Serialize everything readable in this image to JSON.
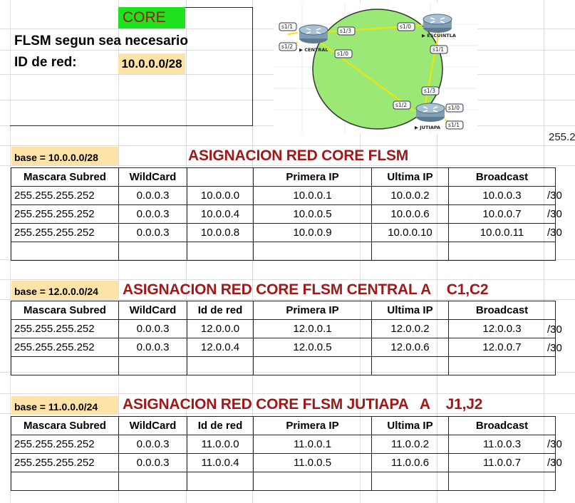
{
  "header": {
    "core_label": "CORE",
    "flsm_text": "FLSM segun sea necesario",
    "net_id_label": "ID de red:",
    "net_id_value": "10.0.0.0/28",
    "edge_clip": "255.2"
  },
  "topology": {
    "routers": [
      {
        "name": "CENTRAL",
        "interfaces": [
          "s1/1",
          "s1/2",
          "s1/3",
          "s1/0"
        ]
      },
      {
        "name": "ESCUINTLA",
        "interfaces": [
          "s1/0",
          "s1/1"
        ]
      },
      {
        "name": "JUTIAPA",
        "interfaces": [
          "s1/3",
          "s1/2",
          "s1/0",
          "s1/1"
        ]
      }
    ],
    "colors": {
      "cloud": "#9be877",
      "link": "#f2e600"
    }
  },
  "sections": [
    {
      "base": "base = 10.0.0.0/28",
      "title": "ASIGNACION RED CORE FLSM",
      "headers": [
        "Mascara Subred",
        "WildCard",
        "",
        "Primera IP",
        "Ultima IP",
        "Broadcast"
      ],
      "rows": [
        [
          "255.255.255.252",
          "0.0.0.3",
          "10.0.0.0",
          "10.0.0.1",
          "10.0.0.2",
          "10.0.0.3"
        ],
        [
          "255.255.255.252",
          "0.0.0.3",
          "10.0.0.4",
          "10.0.0.5",
          "10.0.0.6",
          "10.0.0.7"
        ],
        [
          "255.255.255.252",
          "0.0.0.3",
          "10.0.0.8",
          "10.0.0.9",
          "10.0.0.10",
          "10.0.0.11"
        ]
      ],
      "suffixes": [
        "/30",
        "/30",
        "/30"
      ]
    },
    {
      "base": "base = 12.0.0.0/24",
      "title": "ASIGNACION RED CORE FLSM CENTRAL A    C1,C2",
      "headers": [
        "Mascara Subred",
        "WildCard",
        "Id de red",
        "Primera IP",
        "Ultima IP",
        "Broadcast"
      ],
      "rows": [
        [
          "255.255.255.252",
          "0.0.0.3",
          "12.0.0.0",
          "12.0.0.1",
          "12.0.0.2",
          "12.0.0.3"
        ],
        [
          "255.255.255.252",
          "0.0.0.3",
          "12.0.0.4",
          "12.0.0.5",
          "12.0.0.6",
          "12.0.0.7"
        ]
      ],
      "suffixes": [
        "/30",
        "/30"
      ]
    },
    {
      "base": "base = 11.0.0.0/24",
      "title": "ASIGNACION RED CORE FLSM JUTIAPA   A    J1,J2",
      "headers": [
        "Mascara Subred",
        "WildCard",
        "Id de red",
        "Primera IP",
        "Ultima IP",
        "Broadcast"
      ],
      "rows": [
        [
          "255.255.255.252",
          "0.0.0.3",
          "11.0.0.0",
          "11.0.0.1",
          "11.0.0.2",
          "11.0.0.3"
        ],
        [
          "255.255.255.252",
          "0.0.0.3",
          "11.0.0.4",
          "11.0.0.5",
          "11.0.0.6",
          "11.0.0.7"
        ]
      ],
      "suffixes": [
        "/30",
        "/30"
      ]
    }
  ]
}
